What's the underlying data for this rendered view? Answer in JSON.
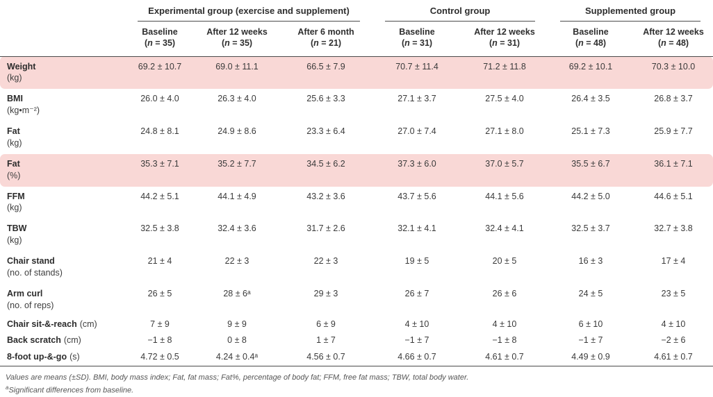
{
  "table": {
    "highlight_color": "#f9d8d6",
    "groups": [
      {
        "label": "Experimental group (exercise and supplement)"
      },
      {
        "label": "Control group"
      },
      {
        "label": "Supplemented group"
      }
    ],
    "columns": [
      {
        "label": "Baseline",
        "n": "(n = 35)"
      },
      {
        "label": "After 12 weeks",
        "n": "(n = 35)"
      },
      {
        "label": "After 6 month",
        "n": "(n = 21)"
      },
      {
        "label": "Baseline",
        "n": "(n = 31)"
      },
      {
        "label": "After 12 weeks",
        "n": "(n = 31)"
      },
      {
        "label": "Baseline",
        "n": "(n = 48)"
      },
      {
        "label": "After 12 weeks",
        "n": "(n = 48)"
      }
    ],
    "rows": [
      {
        "label": "Weight",
        "unit": "(kg)",
        "highlight": true,
        "inline": false,
        "values": [
          "69.2 ± 10.7",
          "69.0 ± 11.1",
          "66.5 ± 7.9",
          "70.7 ± 11.4",
          "71.2 ± 11.8",
          "69.2 ± 10.1",
          "70.3 ± 10.0"
        ]
      },
      {
        "label": "BMI",
        "unit": "(kg•m⁻²)",
        "highlight": false,
        "inline": false,
        "values": [
          "26.0 ± 4.0",
          "26.3 ± 4.0",
          "25.6 ± 3.3",
          "27.1 ± 3.7",
          "27.5 ± 4.0",
          "26.4 ± 3.5",
          "26.8 ± 3.7"
        ]
      },
      {
        "label": "Fat",
        "unit": "(kg)",
        "highlight": false,
        "inline": false,
        "values": [
          "24.8 ± 8.1",
          "24.9 ± 8.6",
          "23.3 ± 6.4",
          "27.0 ± 7.4",
          "27.1 ± 8.0",
          "25.1 ± 7.3",
          "25.9 ± 7.7"
        ]
      },
      {
        "label": "Fat",
        "unit": "(%)",
        "highlight": true,
        "inline": false,
        "values": [
          "35.3 ± 7.1",
          "35.2 ± 7.7",
          "34.5 ± 6.2",
          "37.3 ± 6.0",
          "37.0 ± 5.7",
          "35.5 ± 6.7",
          "36.1 ± 7.1"
        ]
      },
      {
        "label": "FFM",
        "unit": "(kg)",
        "highlight": false,
        "inline": false,
        "values": [
          "44.2 ± 5.1",
          "44.1 ± 4.9",
          "43.2 ± 3.6",
          "43.7 ± 5.6",
          "44.1 ± 5.6",
          "44.2 ± 5.0",
          "44.6 ± 5.1"
        ]
      },
      {
        "label": "TBW",
        "unit": "(kg)",
        "highlight": false,
        "inline": false,
        "values": [
          "32.5 ± 3.8",
          "32.4 ± 3.6",
          "31.7 ± 2.6",
          "32.1 ± 4.1",
          "32.4 ± 4.1",
          "32.5 ± 3.7",
          "32.7 ± 3.8"
        ]
      },
      {
        "label": "Chair stand",
        "unit": "(no. of stands)",
        "highlight": false,
        "inline": false,
        "values": [
          "21 ± 4",
          "22 ± 3",
          "22 ± 3",
          "19 ± 5",
          "20 ± 5",
          "16 ± 3",
          "17 ± 4"
        ]
      },
      {
        "label": "Arm curl",
        "unit": "(no. of reps)",
        "highlight": false,
        "inline": false,
        "values": [
          "26 ± 5",
          "28 ± 6ᵃ",
          "29 ± 3",
          "26 ± 7",
          "26 ± 6",
          "24 ± 5",
          "23 ± 5"
        ]
      },
      {
        "label": "Chair sit-&-reach",
        "unit": "(cm)",
        "highlight": false,
        "inline": true,
        "values": [
          "7 ± 9",
          "9 ± 9",
          "6 ± 9",
          "4 ± 10",
          "4 ± 10",
          "6 ± 10",
          "4 ± 10"
        ]
      },
      {
        "label": "Back scratch",
        "unit": "(cm)",
        "highlight": false,
        "inline": true,
        "values": [
          "−1 ± 8",
          "0 ± 8",
          "1 ± 7",
          "−1 ± 7",
          "−1 ± 8",
          "−1 ± 7",
          "−2 ± 6"
        ]
      },
      {
        "label": "8-foot up-&-go",
        "unit": "(s)",
        "highlight": false,
        "inline": true,
        "values": [
          "4.72 ± 0.5",
          "4.24 ± 0.4ᵃ",
          "4.56 ± 0.7",
          "4.66 ± 0.7",
          "4.61 ± 0.7",
          "4.49 ± 0.9",
          "4.61 ± 0.7"
        ]
      }
    ]
  },
  "footnotes": {
    "line1": "Values are means (±SD). BMI, body mass index; Fat, fat mass; Fat%, percentage of body fat; FFM, free fat mass; TBW, total body water.",
    "sup": "a",
    "line2": "Significant differences from baseline."
  }
}
